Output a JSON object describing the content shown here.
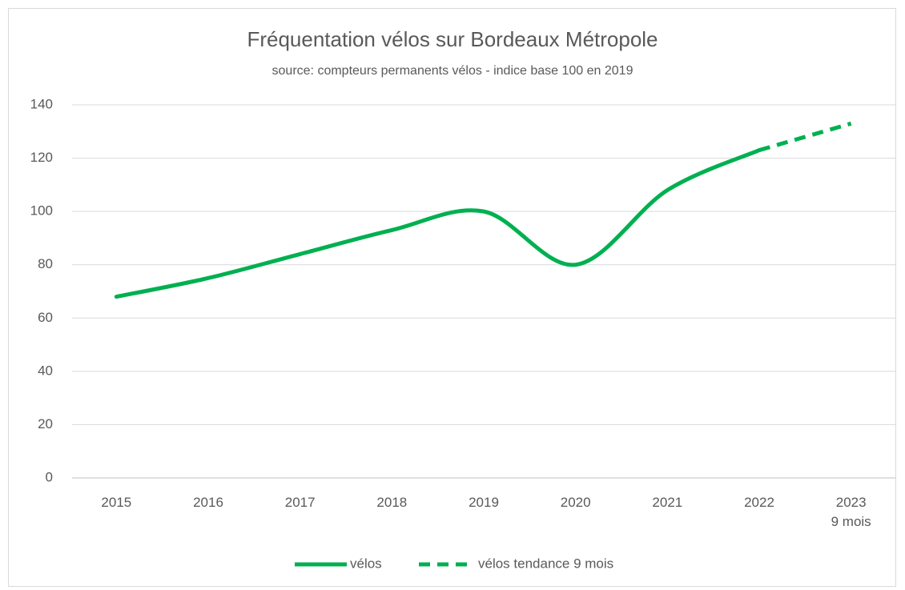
{
  "chart_data": {
    "type": "line",
    "title": "Fréquentation vélos sur Bordeaux Métropole",
    "subtitle": "source: compteurs permanents vélos - indice base 100 en 2019",
    "categories": [
      "2015",
      "2016",
      "2017",
      "2018",
      "2019",
      "2020",
      "2021",
      "2022",
      "2023\n9 mois"
    ],
    "series": [
      {
        "name": "vélos",
        "color": "#00b050",
        "dash": false,
        "values": [
          68,
          75,
          84,
          93,
          100,
          80,
          108,
          123,
          null
        ]
      },
      {
        "name": "vélos tendance 9 mois",
        "color": "#00b050",
        "dash": true,
        "values": [
          null,
          null,
          null,
          null,
          null,
          null,
          null,
          123,
          133
        ]
      }
    ],
    "ylim": [
      0,
      140
    ],
    "yticks": [
      0,
      20,
      40,
      60,
      80,
      100,
      120,
      140
    ],
    "grid": true,
    "legend": "bottom"
  }
}
